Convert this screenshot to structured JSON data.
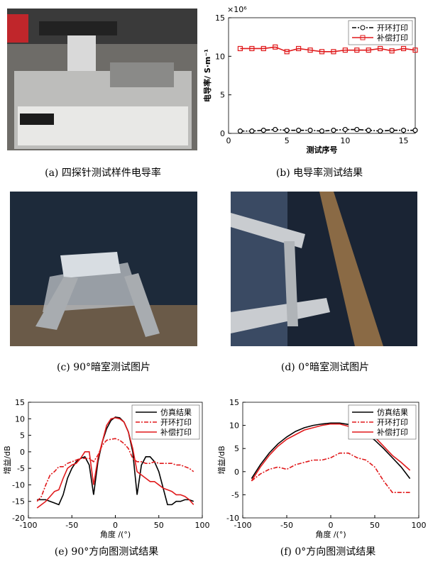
{
  "panels": [
    {
      "caption": "(a) 四探针测试样件电导率"
    },
    {
      "caption": "(c) 90°暗室测试图片"
    },
    {
      "caption": "(d) 0°暗室测试图片"
    }
  ],
  "chart_data": [
    {
      "type": "line",
      "caption": "(b) 电导率测试结果",
      "multiplier": "×10⁶",
      "ylabel": "电导率/ S·m⁻¹",
      "xlabel": "测试序号",
      "x": [
        1,
        2,
        3,
        4,
        5,
        6,
        7,
        8,
        9,
        10,
        11,
        12,
        13,
        14,
        15,
        16
      ],
      "xlim": [
        0,
        16
      ],
      "xticks": [
        0,
        5,
        10,
        15
      ],
      "ylim": [
        0,
        15
      ],
      "yticks": [
        0,
        5,
        10,
        15
      ],
      "legend": "upper right",
      "series": [
        {
          "name": "开环打印",
          "color": "#000000",
          "linestyle": "dash-dot",
          "marker": "circle",
          "values": [
            0.3,
            0.3,
            0.4,
            0.5,
            0.4,
            0.4,
            0.4,
            0.3,
            0.4,
            0.5,
            0.5,
            0.4,
            0.3,
            0.4,
            0.4,
            0.4
          ]
        },
        {
          "name": "补偿打印",
          "color": "#e0191b",
          "linestyle": "solid",
          "marker": "square",
          "values": [
            11,
            11,
            11,
            11.2,
            10.6,
            11,
            10.8,
            10.6,
            10.6,
            10.8,
            10.8,
            10.8,
            11,
            10.7,
            11,
            10.8
          ]
        }
      ]
    },
    {
      "type": "line",
      "caption": "(e) 90°方向图测试结果",
      "ylabel": "增益/dB",
      "xlabel": "角度 /(°)",
      "x": [
        -90,
        -85,
        -80,
        -75,
        -70,
        -65,
        -60,
        -55,
        -50,
        -45,
        -40,
        -35,
        -30,
        -25,
        -20,
        -15,
        -10,
        -5,
        0,
        5,
        10,
        15,
        20,
        25,
        30,
        35,
        40,
        45,
        50,
        55,
        60,
        65,
        70,
        75,
        80,
        85,
        90
      ],
      "xlim": [
        -100,
        100
      ],
      "xticks": [
        -100,
        -50,
        0,
        50,
        100
      ],
      "ylim": [
        -20,
        15
      ],
      "yticks": [
        -20,
        -15,
        -10,
        -5,
        0,
        5,
        10,
        15
      ],
      "legend": "upper right",
      "series": [
        {
          "name": "仿真结果",
          "color": "#000000",
          "linestyle": "solid",
          "values": [
            -14.5,
            -14.5,
            -14.5,
            -15,
            -15.5,
            -16,
            -13,
            -8,
            -5,
            -3,
            -2,
            -1.5,
            -4,
            -13,
            -3,
            3,
            7,
            9.5,
            10.5,
            10.3,
            9,
            6,
            0,
            -13,
            -4,
            -1.5,
            -1.5,
            -3,
            -6,
            -11,
            -16,
            -16,
            -15,
            -15,
            -14.5,
            -14.5,
            -15
          ]
        },
        {
          "name": "开环打印",
          "color": "#e0191b",
          "linestyle": "dash-dot",
          "values": [
            -15,
            -13.5,
            -10,
            -7,
            -6,
            -4.5,
            -4.5,
            -3.5,
            -3,
            -2.5,
            -2,
            -2,
            -2,
            -3,
            -1,
            2,
            3.5,
            3.8,
            4,
            3.5,
            2.5,
            1,
            -2,
            -3,
            -3,
            -3.5,
            -3.5,
            -3,
            -3.5,
            -3.5,
            -3.5,
            -3.5,
            -4,
            -4,
            -4.5,
            -5,
            -6
          ]
        },
        {
          "name": "补偿打印",
          "color": "#e0191b",
          "linestyle": "solid",
          "values": [
            -17,
            -16,
            -15,
            -13.5,
            -12,
            -11.5,
            -8,
            -5,
            -4,
            -3.5,
            -2,
            0,
            0,
            -10,
            -2,
            3,
            8,
            10,
            10.3,
            10,
            9,
            6,
            1,
            -6,
            -7,
            -8,
            -9,
            -9,
            -10,
            -11,
            -11.5,
            -12,
            -13,
            -13,
            -13.5,
            -14.5,
            -16
          ]
        }
      ]
    },
    {
      "type": "line",
      "caption": "(f) 0°方向图测试结果",
      "ylabel": "增益/dB",
      "xlabel": "角度 /(°)",
      "x": [
        -90,
        -80,
        -70,
        -60,
        -50,
        -40,
        -30,
        -20,
        -10,
        0,
        10,
        20,
        30,
        40,
        50,
        60,
        70,
        80,
        90
      ],
      "xlim": [
        -100,
        100
      ],
      "xticks": [
        -100,
        -50,
        0,
        50,
        100
      ],
      "ylim": [
        -10,
        15
      ],
      "yticks": [
        -10,
        -5,
        0,
        5,
        10,
        15
      ],
      "legend": "upper right",
      "series": [
        {
          "name": "仿真结果",
          "color": "#000000",
          "linestyle": "solid",
          "values": [
            -1.5,
            1.5,
            4,
            6,
            7.5,
            8.7,
            9.5,
            10,
            10.3,
            10.5,
            10.5,
            10.2,
            9.5,
            8.3,
            6.8,
            5,
            3,
            1,
            -1.5
          ]
        },
        {
          "name": "开环打印",
          "color": "#e0191b",
          "linestyle": "dash-dot",
          "values": [
            -2,
            -0.5,
            0.5,
            1,
            0.5,
            1.5,
            2,
            2.5,
            2.5,
            3,
            4,
            4,
            3,
            2.5,
            1,
            -2,
            -4.5,
            -4.5,
            -4.5
          ]
        },
        {
          "name": "补偿打印",
          "color": "#e0191b",
          "linestyle": "solid",
          "values": [
            -2,
            1,
            3.5,
            5.5,
            7,
            8,
            9,
            9.5,
            10,
            10.3,
            10.3,
            9.8,
            9,
            8.8,
            7.5,
            5.5,
            3.5,
            2,
            0.3
          ]
        }
      ]
    }
  ]
}
